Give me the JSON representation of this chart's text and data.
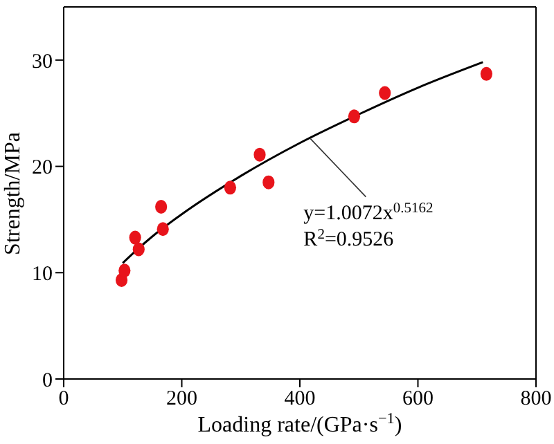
{
  "chart_data": {
    "type": "scatter",
    "xlabel": "Loading rate/(GPa·s$^{−1}$)",
    "ylabel": "Strength/MPa",
    "xlim": [
      0,
      800
    ],
    "xticks": [
      0,
      200,
      400,
      600,
      800
    ],
    "ylim": [
      0,
      35
    ],
    "yticks": [
      0,
      10,
      20,
      30
    ],
    "grid": false,
    "legend": false,
    "marker": "circle",
    "series": [
      {
        "color": "#e8141b",
        "x": [
          98,
          103,
          121,
          127,
          165,
          168,
          282,
          332,
          347,
          492,
          544,
          716
        ],
        "values": [
          9.3,
          10.2,
          13.3,
          12.2,
          16.2,
          14.1,
          18.0,
          21.1,
          18.5,
          24.7,
          26.9,
          28.7
        ]
      },
      {
        "type": "line",
        "color": "#000000",
        "marker": "none",
        "x": [
          100,
          125,
          150,
          200,
          300,
          400,
          500,
          600,
          710
        ],
        "values": [
          10.9,
          12.2,
          13.4,
          15.5,
          19.1,
          22.2,
          24.9,
          27.4,
          29.8
        ]
      }
    ],
    "annotations": [
      {
        "text": "y=1.0072x$^{0.5162}$",
        "x": 418,
        "y": 22.6
      },
      "R$^{2}$=0.9526"
    ]
  }
}
